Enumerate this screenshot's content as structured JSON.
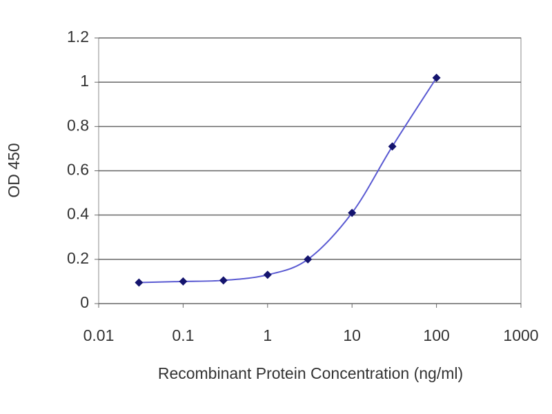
{
  "chart_data": {
    "type": "line",
    "xlabel": "Recombinant Protein Concentration (ng/ml)",
    "ylabel": "OD 450",
    "x": [
      0.03,
      0.1,
      0.3,
      1,
      3,
      10,
      30,
      100
    ],
    "series": [
      {
        "name": "OD 450",
        "color": "#5a5ad2",
        "marker_color": "#14146e",
        "values": [
          0.095,
          0.1,
          0.105,
          0.13,
          0.2,
          0.41,
          0.71,
          1.02
        ]
      }
    ],
    "xlim": [
      0.01,
      1000
    ],
    "xticks": [
      0.01,
      0.1,
      1,
      10,
      100,
      1000
    ],
    "xlog": true,
    "ylim": [
      0,
      1.2
    ],
    "yticks": [
      0,
      0.2,
      0.4,
      0.6,
      0.8,
      1,
      1.2
    ],
    "grid": true,
    "smooth": true
  }
}
